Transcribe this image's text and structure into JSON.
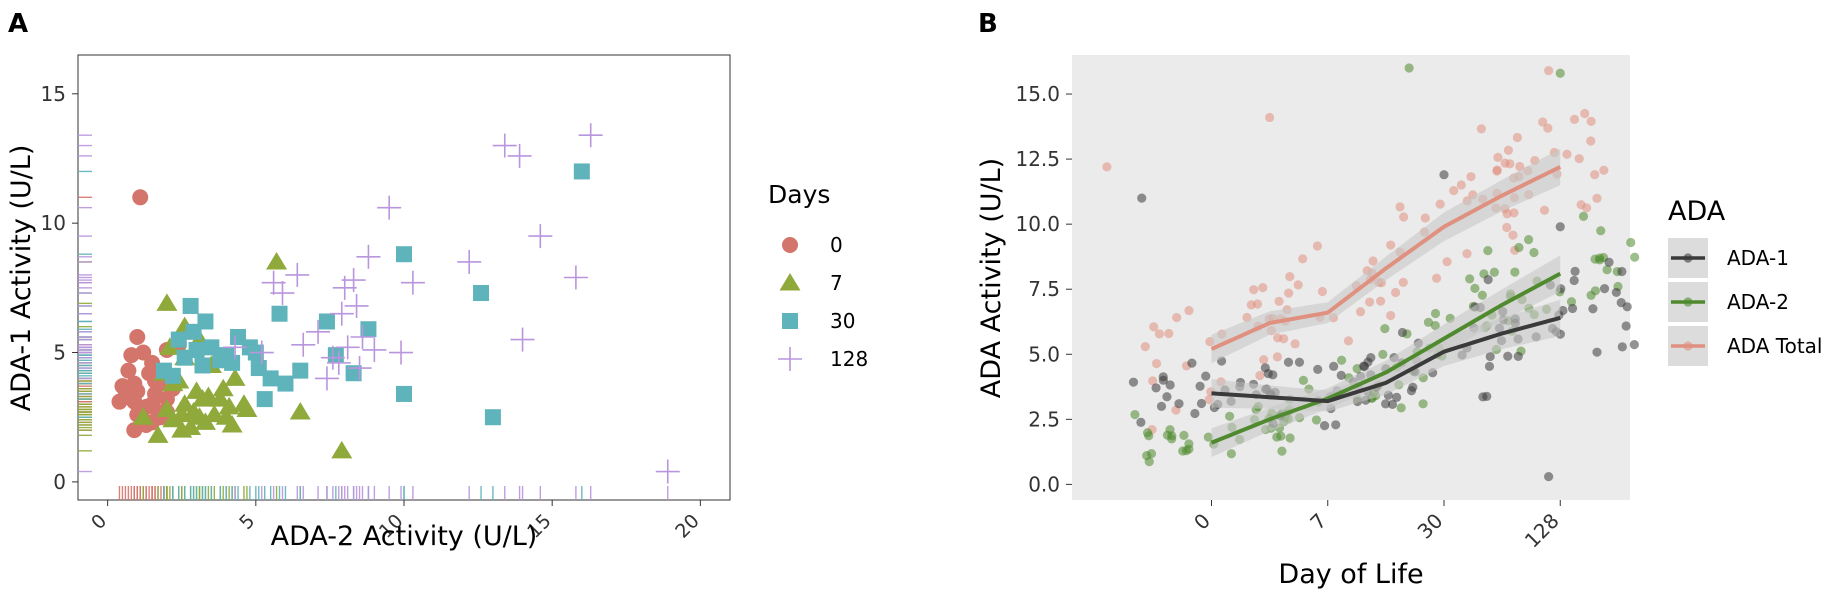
{
  "chart_data": [
    {
      "panel_label": "A",
      "type": "scatter",
      "xlabel": "ADA-2 Activity (U/L)",
      "ylabel": "ADA-1 Activity (U/L)",
      "xlim": [
        -1,
        21
      ],
      "ylim": [
        -0.7,
        16.5
      ],
      "xticks": [
        0,
        5,
        10,
        15,
        20
      ],
      "yticks": [
        0,
        5,
        10,
        15
      ],
      "grid": false,
      "rug": true,
      "legend": {
        "title": "Days",
        "position": "right"
      },
      "colors": {
        "0": "#d4756b",
        "7": "#8faa3b",
        "30": "#5fb3ba",
        "128": "#b995dd"
      },
      "series": [
        {
          "name": "0",
          "marker": "circle",
          "x": [
            1.1,
            1.0,
            0.8,
            1.2,
            1.5,
            0.7,
            2.0,
            1.4,
            0.9,
            1.9,
            0.5,
            1.0,
            0.6,
            0.9,
            2.2,
            1.6,
            1.3,
            1.5,
            1.1,
            1.7,
            2.0,
            1.2,
            1.3,
            0.9,
            1.5,
            1.8,
            2.4,
            1.9,
            0.4,
            1.0,
            2.0,
            1.6
          ],
          "y": [
            11.0,
            5.6,
            4.9,
            5.0,
            4.6,
            4.3,
            5.1,
            4.2,
            3.8,
            4.0,
            3.7,
            3.5,
            3.3,
            3.1,
            3.6,
            3.4,
            2.9,
            3.0,
            2.8,
            2.7,
            2.7,
            2.4,
            2.2,
            2.0,
            2.3,
            2.5,
            5.3,
            3.8,
            3.1,
            2.6,
            3.2,
            3.9
          ]
        },
        {
          "name": "7",
          "marker": "triangle",
          "x": [
            5.7,
            2.0,
            2.6,
            3.1,
            2.1,
            2.6,
            3.5,
            1.9,
            4.3,
            2.2,
            3.0,
            3.8,
            4.6,
            2.6,
            2.0,
            2.5,
            3.1,
            4.0,
            4.2,
            6.5,
            7.9,
            4.7,
            2.2,
            3.6,
            3.3,
            1.2,
            1.7,
            2.5,
            3.2,
            3.9,
            2.8,
            4.1,
            2.4,
            2.9,
            3.4
          ],
          "y": [
            8.5,
            6.9,
            6.0,
            5.5,
            5.2,
            4.8,
            4.5,
            4.2,
            4.0,
            3.8,
            3.5,
            3.2,
            3.0,
            3.0,
            2.8,
            2.6,
            2.5,
            2.5,
            2.2,
            2.7,
            1.2,
            2.8,
            2.4,
            2.6,
            2.3,
            2.5,
            1.8,
            2.0,
            3.2,
            3.6,
            2.1,
            2.9,
            3.9,
            2.7,
            3.3
          ]
        },
        {
          "name": "30",
          "marker": "square",
          "x": [
            16.0,
            10.0,
            12.6,
            8.8,
            5.8,
            7.4,
            6.5,
            7.7,
            8.3,
            10.0,
            13.0,
            2.8,
            3.3,
            2.9,
            4.4,
            4.8,
            5.0,
            2.4,
            3.5,
            3.0,
            2.6,
            3.8,
            4.2,
            5.1,
            5.5,
            1.9,
            2.2,
            4.0,
            5.3,
            6.0,
            3.2
          ],
          "y": [
            12.0,
            8.8,
            7.3,
            5.9,
            6.5,
            6.2,
            4.3,
            4.9,
            4.2,
            3.4,
            2.5,
            6.8,
            6.2,
            5.8,
            5.6,
            5.2,
            5.0,
            5.5,
            5.2,
            5.1,
            4.8,
            4.7,
            4.6,
            4.4,
            4.0,
            4.3,
            4.1,
            4.9,
            3.2,
            3.8,
            4.5
          ]
        },
        {
          "name": "128",
          "marker": "cross",
          "x": [
            16.3,
            13.4,
            13.9,
            14.6,
            9.5,
            15.8,
            12.2,
            14.0,
            10.3,
            8.8,
            8.3,
            8.0,
            8.4,
            5.6,
            5.9,
            6.4,
            7.1,
            7.6,
            8.1,
            9.0,
            9.9,
            7.8,
            8.5,
            7.4,
            6.6,
            5.2,
            18.9,
            4.3,
            7.9,
            8.6
          ],
          "y": [
            13.4,
            13.0,
            12.6,
            9.5,
            10.6,
            7.9,
            8.5,
            5.5,
            7.7,
            8.7,
            7.8,
            7.5,
            6.8,
            7.7,
            7.3,
            8.0,
            5.8,
            4.8,
            5.2,
            5.1,
            5.0,
            4.6,
            4.4,
            4.0,
            5.3,
            5.0,
            0.4,
            5.2,
            6.5,
            5.6
          ]
        }
      ]
    },
    {
      "panel_label": "B",
      "type": "scatter",
      "xlabel": "Day of Life",
      "ylabel": "ADA Activity (U/L)",
      "xlim": [
        -1.2,
        3.6
      ],
      "ylim": [
        -0.6,
        16.5
      ],
      "xticks": [
        0,
        1,
        2,
        3
      ],
      "xticklabels": [
        "0",
        "7",
        "30",
        "128"
      ],
      "yticks": [
        0,
        2.5,
        5,
        7.5,
        10,
        12.5,
        15
      ],
      "yticklabels": [
        "0.0",
        "2.5",
        "5.0",
        "7.5",
        "10.0",
        "12.5",
        "15.0"
      ],
      "grid": false,
      "background": "#ebebeb",
      "jitter": true,
      "smoother": "loess with confidence band",
      "legend": {
        "title": "ADA",
        "position": "right"
      },
      "colors": {
        "ADA-1": "#3a3a3a",
        "ADA-2": "#4f8a2e",
        "ADA Total": "#e0907f",
        "band": "#c8c8c8"
      },
      "trend": {
        "x": [
          0,
          0.5,
          1,
          1.5,
          2,
          2.5,
          3
        ],
        "ADA-1": [
          3.5,
          3.35,
          3.2,
          3.9,
          5.1,
          5.8,
          6.4
        ],
        "ADA-2": [
          1.6,
          2.5,
          3.3,
          4.3,
          5.6,
          6.9,
          8.1
        ],
        "ADA Total": [
          5.2,
          6.2,
          6.6,
          8.3,
          9.9,
          11.1,
          12.2
        ]
      },
      "points_summary": {
        "ADA-1": {
          "mean": [
            2.9,
            3.2,
            5.0,
            6.3
          ],
          "spread": [
            0.9,
            1.1,
            1.3,
            1.5
          ],
          "extra": [
            [
              -0.6,
              11.0
            ],
            [
              2.9,
              0.3
            ],
            [
              2.0,
              11.9
            ],
            [
              3.0,
              9.9
            ]
          ]
        },
        "ADA-2": {
          "mean": [
            1.8,
            3.1,
            5.2,
            7.2
          ],
          "spread": [
            0.7,
            1.0,
            1.6,
            1.8
          ],
          "extra": [
            [
              1.7,
              16.0
            ],
            [
              3.0,
              15.8
            ],
            [
              3.2,
              10.3
            ]
          ]
        },
        "ADA Total": {
          "mean": [
            5.5,
            7.0,
            10.4,
            12.3
          ],
          "spread": [
            1.4,
            1.6,
            2.0,
            1.8
          ],
          "extra": [
            [
              -0.9,
              12.2
            ],
            [
              0.5,
              14.1
            ],
            [
              2.9,
              15.9
            ]
          ]
        }
      }
    }
  ]
}
